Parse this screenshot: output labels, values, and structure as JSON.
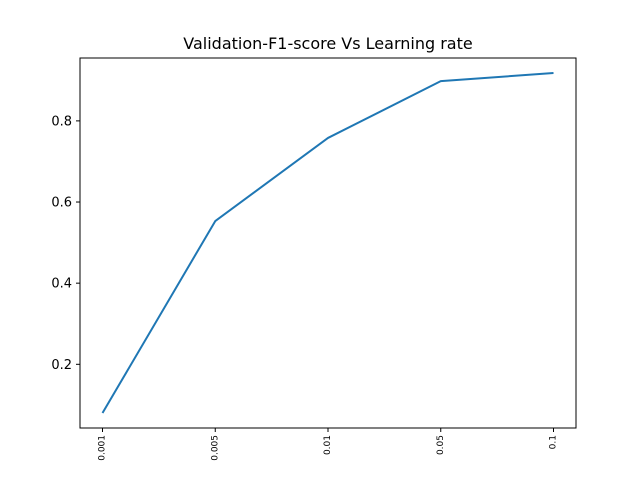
{
  "chart_data": {
    "type": "line",
    "title": "Validation-F1-score Vs Learning rate",
    "xlabel": "",
    "ylabel": "",
    "categories": [
      "0.001",
      "0.005",
      "0.01",
      "0.05",
      "0.1"
    ],
    "series": [
      {
        "values": [
          0.08,
          0.553,
          0.758,
          0.898,
          0.918
        ],
        "color": "#1f77b4"
      }
    ],
    "yticks": [
      0.2,
      0.4,
      0.6,
      0.8
    ],
    "ylim": [
      0.043,
      0.955
    ],
    "grid": false,
    "legend": "none"
  }
}
